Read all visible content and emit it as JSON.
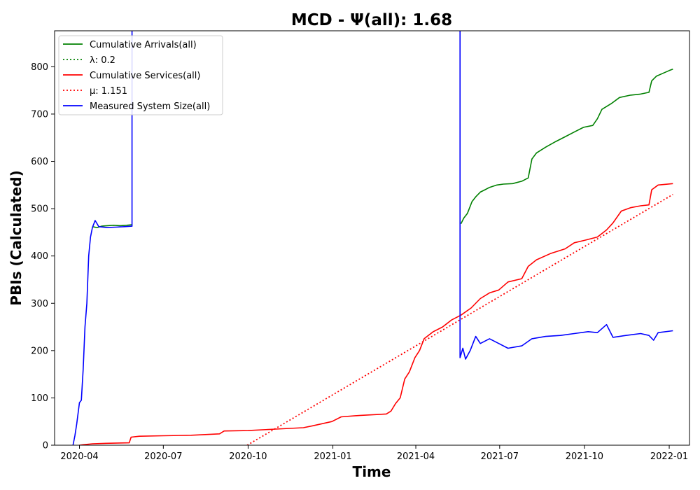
{
  "chart_data": {
    "type": "line",
    "title": "MCD -  Ψ(all): 1.68",
    "xlabel": "Time",
    "ylabel": "PBIs (Calculated)",
    "xlim": [
      "2020-03-05",
      "2022-01-23"
    ],
    "ylim": [
      0,
      876
    ],
    "x_tick_labels": [
      "2020-04",
      "2020-07",
      "2020-10",
      "2021-01",
      "2021-04",
      "2021-07",
      "2021-10",
      "2022-01"
    ],
    "y_tick_values": [
      0,
      100,
      200,
      300,
      400,
      500,
      600,
      700,
      800
    ],
    "grid": false,
    "legend_position": "upper-left",
    "legend": [
      {
        "label": "Cumulative Arrivals(all)",
        "color": "#008000",
        "style": "solid"
      },
      {
        "label": "λ: 0.2",
        "color": "#008000",
        "style": "dotted"
      },
      {
        "label": "Cumulative Services(all)",
        "color": "#ff0000",
        "style": "solid"
      },
      {
        "label": "μ: 1.151",
        "color": "#ff0000",
        "style": "dotted"
      },
      {
        "label": "Measured System Size(all)",
        "color": "#0000ff",
        "style": "solid"
      }
    ],
    "series": [
      {
        "name": "Cumulative Arrivals(all)",
        "color": "#008000",
        "style": "solid",
        "segments": [
          [
            [
              "2020-04-15",
              462
            ],
            [
              "2020-04-20",
              460
            ],
            [
              "2020-04-25",
              463
            ],
            [
              "2020-05-01",
              464
            ],
            [
              "2020-05-08",
              465
            ],
            [
              "2020-05-15",
              464
            ],
            [
              "2020-05-22",
              465
            ],
            [
              "2020-05-28",
              466
            ]
          ],
          [
            [
              "2021-05-20",
              468
            ],
            [
              "2021-05-23",
              480
            ],
            [
              "2021-05-27",
              490
            ],
            [
              "2021-06-01",
              515
            ],
            [
              "2021-06-05",
              525
            ],
            [
              "2021-06-10",
              535
            ],
            [
              "2021-06-15",
              540
            ],
            [
              "2021-06-20",
              545
            ],
            [
              "2021-06-28",
              550
            ],
            [
              "2021-07-05",
              552
            ],
            [
              "2021-07-15",
              553
            ],
            [
              "2021-07-25",
              558
            ],
            [
              "2021-08-01",
              565
            ],
            [
              "2021-08-05",
              605
            ],
            [
              "2021-08-10",
              618
            ],
            [
              "2021-08-20",
              630
            ],
            [
              "2021-08-31",
              642
            ],
            [
              "2021-09-10",
              652
            ],
            [
              "2021-09-20",
              662
            ],
            [
              "2021-09-30",
              672
            ],
            [
              "2021-10-10",
              676
            ],
            [
              "2021-10-15",
              690
            ],
            [
              "2021-10-20",
              710
            ],
            [
              "2021-10-30",
              722
            ],
            [
              "2021-11-08",
              735
            ],
            [
              "2021-11-20",
              740
            ],
            [
              "2021-11-30",
              742
            ],
            [
              "2021-12-10",
              746
            ],
            [
              "2021-12-13",
              770
            ],
            [
              "2021-12-18",
              780
            ],
            [
              "2021-12-25",
              786
            ],
            [
              "2022-01-01",
              792
            ],
            [
              "2022-01-05",
              795
            ]
          ]
        ]
      },
      {
        "name": "λ: 0.2",
        "color": "#008000",
        "style": "dotted",
        "segments": [
          [
            [
              "2020-03-05",
              0
            ],
            [
              "2020-03-05",
              0
            ]
          ]
        ]
      },
      {
        "name": "Cumulative Services(all)",
        "color": "#ff0000",
        "style": "solid",
        "segments": [
          [
            [
              "2020-04-01",
              0
            ],
            [
              "2020-04-05",
              1
            ],
            [
              "2020-04-15",
              3
            ],
            [
              "2020-04-30",
              4
            ],
            [
              "2020-05-25",
              5
            ],
            [
              "2020-05-27",
              17
            ],
            [
              "2020-06-05",
              19
            ],
            [
              "2020-07-01",
              20
            ],
            [
              "2020-07-31",
              21
            ],
            [
              "2020-08-31",
              24
            ],
            [
              "2020-09-05",
              30
            ],
            [
              "2020-10-01",
              31
            ],
            [
              "2020-10-31",
              34
            ],
            [
              "2020-11-30",
              37
            ],
            [
              "2020-12-10",
              41
            ],
            [
              "2020-12-31",
              50
            ],
            [
              "2021-01-10",
              60
            ],
            [
              "2021-01-31",
              63
            ],
            [
              "2021-02-28",
              66
            ],
            [
              "2021-03-05",
              72
            ],
            [
              "2021-03-10",
              88
            ],
            [
              "2021-03-15",
              100
            ],
            [
              "2021-03-20",
              140
            ],
            [
              "2021-03-25",
              155
            ],
            [
              "2021-03-31",
              185
            ],
            [
              "2021-04-05",
              200
            ],
            [
              "2021-04-10",
              225
            ],
            [
              "2021-04-20",
              240
            ],
            [
              "2021-04-30",
              250
            ],
            [
              "2021-05-10",
              265
            ],
            [
              "2021-05-20",
              275
            ],
            [
              "2021-05-31",
              290
            ],
            [
              "2021-06-10",
              310
            ],
            [
              "2021-06-20",
              322
            ],
            [
              "2021-06-30",
              328
            ],
            [
              "2021-07-10",
              345
            ],
            [
              "2021-07-25",
              352
            ],
            [
              "2021-08-01",
              378
            ],
            [
              "2021-08-10",
              392
            ],
            [
              "2021-08-25",
              405
            ],
            [
              "2021-09-10",
              415
            ],
            [
              "2021-09-20",
              428
            ],
            [
              "2021-10-01",
              433
            ],
            [
              "2021-10-15",
              440
            ],
            [
              "2021-10-25",
              455
            ],
            [
              "2021-11-01",
              470
            ],
            [
              "2021-11-10",
              495
            ],
            [
              "2021-11-20",
              502
            ],
            [
              "2021-12-01",
              506
            ],
            [
              "2021-12-10",
              508
            ],
            [
              "2021-12-13",
              540
            ],
            [
              "2021-12-20",
              550
            ],
            [
              "2022-01-05",
              553
            ]
          ]
        ]
      },
      {
        "name": "μ: 1.151",
        "color": "#ff0000",
        "style": "dotted",
        "segments": [
          [
            [
              "2020-09-30",
              0
            ],
            [
              "2022-01-05",
              530
            ]
          ]
        ]
      },
      {
        "name": "Measured System Size(all)",
        "color": "#0000ff",
        "style": "solid",
        "segments": [
          [
            [
              "2020-03-25",
              0
            ],
            [
              "2020-03-27",
              20
            ],
            [
              "2020-03-29",
              45
            ],
            [
              "2020-04-01",
              90
            ],
            [
              "2020-04-03",
              95
            ],
            [
              "2020-04-05",
              160
            ],
            [
              "2020-04-07",
              250
            ],
            [
              "2020-04-09",
              300
            ],
            [
              "2020-04-11",
              400
            ],
            [
              "2020-04-13",
              440
            ],
            [
              "2020-04-15",
              460
            ],
            [
              "2020-04-18",
              475
            ],
            [
              "2020-04-22",
              462
            ],
            [
              "2020-05-01",
              460
            ],
            [
              "2020-05-10",
              461
            ],
            [
              "2020-05-20",
              462
            ],
            [
              "2020-05-28",
              463
            ],
            [
              "2020-05-28",
              876
            ]
          ],
          [
            [
              "2021-05-19",
              876
            ],
            [
              "2021-05-19",
              185
            ],
            [
              "2021-05-22",
              205
            ],
            [
              "2021-05-25",
              182
            ],
            [
              "2021-05-30",
              200
            ],
            [
              "2021-06-05",
              230
            ],
            [
              "2021-06-10",
              215
            ],
            [
              "2021-06-20",
              225
            ],
            [
              "2021-06-30",
              215
            ],
            [
              "2021-07-10",
              205
            ],
            [
              "2021-07-25",
              210
            ],
            [
              "2021-08-05",
              225
            ],
            [
              "2021-08-20",
              230
            ],
            [
              "2021-09-05",
              232
            ],
            [
              "2021-09-20",
              236
            ],
            [
              "2021-10-05",
              240
            ],
            [
              "2021-10-15",
              238
            ],
            [
              "2021-10-25",
              255
            ],
            [
              "2021-11-01",
              228
            ],
            [
              "2021-11-15",
              232
            ],
            [
              "2021-12-01",
              236
            ],
            [
              "2021-12-10",
              232
            ],
            [
              "2021-12-15",
              222
            ],
            [
              "2021-12-20",
              238
            ],
            [
              "2022-01-05",
              242
            ]
          ]
        ]
      }
    ]
  }
}
